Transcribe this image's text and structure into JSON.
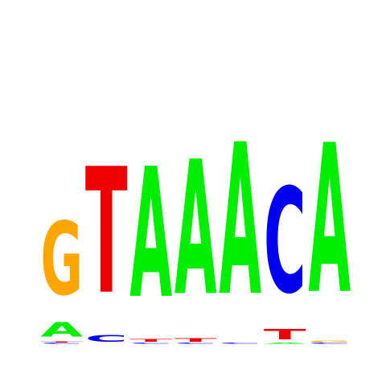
{
  "chart_data": {
    "type": "sequence-logo",
    "ylim": [
      0,
      2
    ],
    "colors": {
      "A": "#00ee00",
      "C": "#0000ee",
      "G": "#ffa500",
      "T": "#ee0000"
    },
    "positions": [
      {
        "index": 1,
        "stack": [
          {
            "letter": "C",
            "bits": 0.01
          },
          {
            "letter": "T",
            "bits": 0.01
          },
          {
            "letter": "A",
            "bits": 0.17
          },
          {
            "letter": "G",
            "bits": 0.85
          }
        ]
      },
      {
        "index": 2,
        "stack": [
          {
            "letter": "C",
            "bits": 0.08
          },
          {
            "letter": "T",
            "bits": 1.46
          }
        ]
      },
      {
        "index": 3,
        "stack": [
          {
            "letter": "C",
            "bits": 0.01
          },
          {
            "letter": "T",
            "bits": 0.03
          },
          {
            "letter": "A",
            "bits": 1.51
          }
        ]
      },
      {
        "index": 4,
        "stack": [
          {
            "letter": "C",
            "bits": 0.01
          },
          {
            "letter": "T",
            "bits": 0.04
          },
          {
            "letter": "A",
            "bits": 1.56
          }
        ]
      },
      {
        "index": 5,
        "stack": [
          {
            "letter": "C",
            "bits": 0.01
          },
          {
            "letter": "A",
            "bits": 1.76
          }
        ]
      },
      {
        "index": 6,
        "stack": [
          {
            "letter": "A",
            "bits": 0.01
          },
          {
            "letter": "T",
            "bits": 0.12
          },
          {
            "letter": "C",
            "bits": 1.22
          }
        ]
      },
      {
        "index": 7,
        "stack": [
          {
            "letter": "C",
            "bits": 0.01
          },
          {
            "letter": "G",
            "bits": 0.02
          },
          {
            "letter": "A",
            "bits": 1.73
          }
        ]
      }
    ]
  }
}
